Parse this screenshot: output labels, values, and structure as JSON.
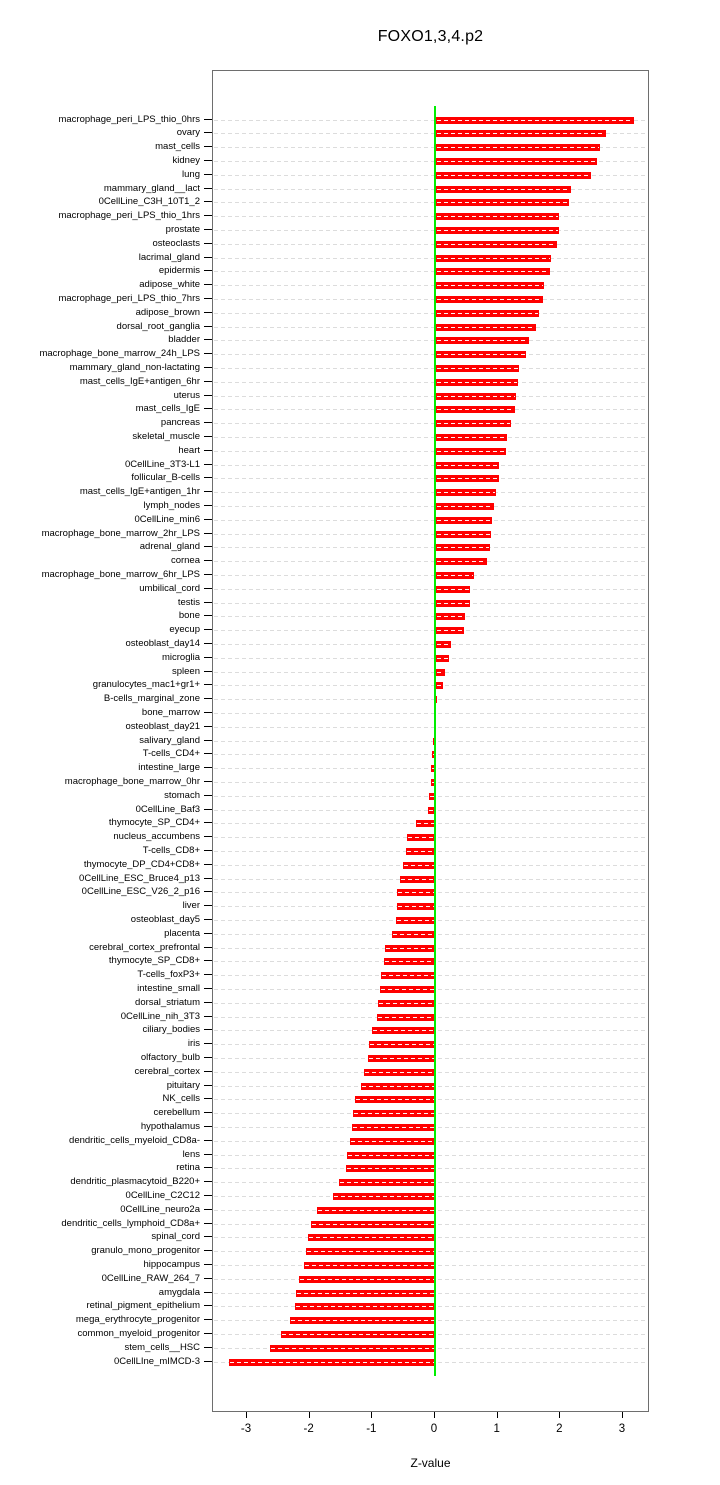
{
  "chart_data": {
    "type": "bar",
    "orientation": "horizontal",
    "title": "FOXO1,3,4.p2",
    "xlabel": "Z-value",
    "xlim": [
      -3.55,
      3.43
    ],
    "xticks": [
      -3,
      -2,
      -1,
      0,
      1,
      2,
      3
    ],
    "grid": "dashed-horizontal-per-category",
    "legend": "none",
    "colors": {
      "bar": "#FF0000",
      "zero_line": "#00EE00",
      "gridline": "#DCDCDC",
      "box_border": "#6E6E6E",
      "text": "#000000",
      "background": "#FFFFFF"
    },
    "categories": [
      "macrophage_peri_LPS_thio_0hrs",
      "ovary",
      "mast_cells",
      "kidney",
      "lung",
      "mammary_gland__lact",
      "0CellLine_C3H_10T1_2",
      "macrophage_peri_LPS_thio_1hrs",
      "prostate",
      "osteoclasts",
      "lacrimal_gland",
      "epidermis",
      "adipose_white",
      "macrophage_peri_LPS_thio_7hrs",
      "adipose_brown",
      "dorsal_root_ganglia",
      "bladder",
      "macrophage_bone_marrow_24h_LPS",
      "mammary_gland_non-lactating",
      "mast_cells_IgE+antigen_6hr",
      "uterus",
      "mast_cells_IgE",
      "pancreas",
      "skeletal_muscle",
      "heart",
      "0CellLine_3T3-L1",
      "follicular_B-cells",
      "mast_cells_IgE+antigen_1hr",
      "lymph_nodes",
      "0CellLine_min6",
      "macrophage_bone_marrow_2hr_LPS",
      "adrenal_gland",
      "cornea",
      "macrophage_bone_marrow_6hr_LPS",
      "umbilical_cord",
      "testis",
      "bone",
      "eyecup",
      "osteoblast_day14",
      "microglia",
      "spleen",
      "granulocytes_mac1+gr1+",
      "B-cells_marginal_zone",
      "bone_marrow",
      "osteoblast_day21",
      "salivary_gland",
      "T-cells_CD4+",
      "intestine_large",
      "macrophage_bone_marrow_0hr",
      "stomach",
      "0CellLine_Baf3",
      "thymocyte_SP_CD4+",
      "nucleus_accumbens",
      "T-cells_CD8+",
      "thymocyte_DP_CD4+CD8+",
      "0CellLine_ESC_Bruce4_p13",
      "0CellLine_ESC_V26_2_p16",
      "liver",
      "osteoblast_day5",
      "placenta",
      "cerebral_cortex_prefrontal",
      "thymocyte_SP_CD8+",
      "T-cells_foxP3+",
      "intestine_small",
      "dorsal_striatum",
      "0CellLine_nih_3T3",
      "ciliary_bodies",
      "iris",
      "olfactory_bulb",
      "cerebral_cortex",
      "pituitary",
      "NK_cells",
      "cerebellum",
      "hypothalamus",
      "dendritic_cells_myeloid_CD8a-",
      "lens",
      "retina",
      "dendritic_plasmacytoid_B220+",
      "0CellLine_C2C12",
      "0CellLine_neuro2a",
      "dendritic_cells_lymphoid_CD8a+",
      "spinal_cord",
      "granulo_mono_progenitor",
      "hippocampus",
      "0CellLine_RAW_264_7",
      "amygdala",
      "retinal_pigment_epithelium",
      "mega_erythrocyte_progenitor",
      "common_myeloid_progenitor",
      "stem_cells__HSC",
      "0CellLIne_mIMCD-3"
    ],
    "values": [
      3.16,
      2.71,
      2.62,
      2.57,
      2.48,
      2.15,
      2.12,
      1.97,
      1.96,
      1.93,
      1.84,
      1.82,
      1.73,
      1.71,
      1.64,
      1.6,
      1.49,
      1.44,
      1.33,
      1.31,
      1.27,
      1.26,
      1.2,
      1.13,
      1.11,
      1.01,
      1.0,
      0.95,
      0.93,
      0.9,
      0.88,
      0.86,
      0.82,
      0.6,
      0.55,
      0.54,
      0.47,
      0.44,
      0.24,
      0.2,
      0.15,
      0.11,
      0.01,
      0.0,
      -0.02,
      -0.03,
      -0.05,
      -0.06,
      -0.07,
      -0.1,
      -0.11,
      -0.31,
      -0.44,
      -0.47,
      -0.51,
      -0.56,
      -0.6,
      -0.61,
      -0.62,
      -0.69,
      -0.79,
      -0.82,
      -0.86,
      -0.87,
      -0.91,
      -0.93,
      -1.01,
      -1.05,
      -1.07,
      -1.13,
      -1.18,
      -1.28,
      -1.31,
      -1.33,
      -1.35,
      -1.4,
      -1.42,
      -1.53,
      -1.63,
      -1.89,
      -1.98,
      -2.02,
      -2.06,
      -2.09,
      -2.17,
      -2.22,
      -2.23,
      -2.32,
      -2.45,
      -2.63,
      -3.29
    ]
  }
}
